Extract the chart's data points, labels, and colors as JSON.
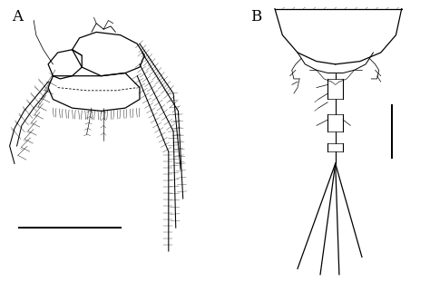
{
  "fig_width": 4.74,
  "fig_height": 3.22,
  "dpi": 100,
  "background_color": "#ffffff",
  "label_A": "A",
  "label_B": "B",
  "label_fontsize": 12,
  "line_color": "#000000",
  "line_width": 0.9,
  "thin_line": 0.5
}
